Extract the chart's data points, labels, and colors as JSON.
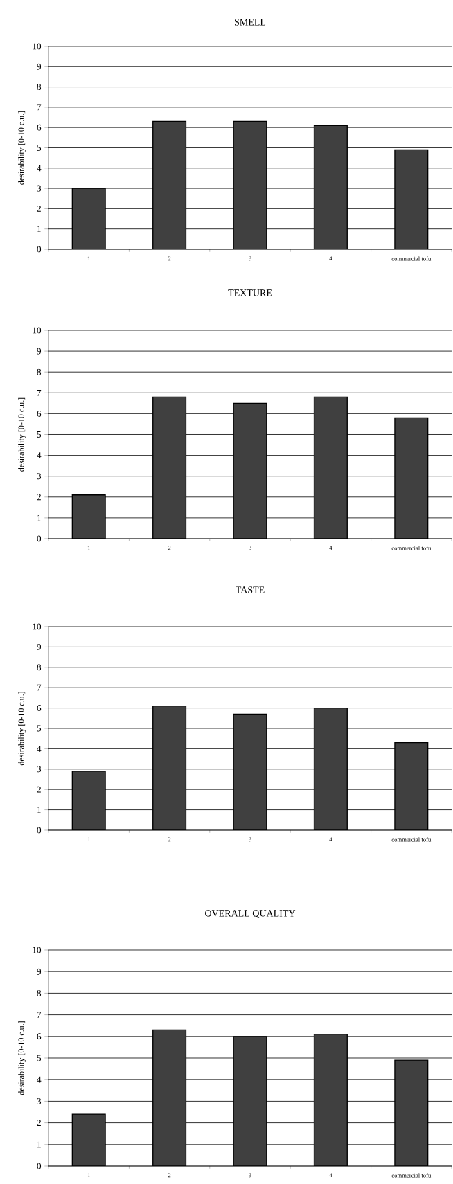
{
  "chart_data": [
    {
      "type": "bar",
      "title": "SMELL",
      "ylabel": "desirability [0-10 c.u.]",
      "categories": [
        "1",
        "2",
        "3",
        "4",
        "commercial tofu"
      ],
      "values": [
        3.0,
        6.3,
        6.3,
        6.1,
        4.9
      ],
      "color": "#404040",
      "ylim": [
        0,
        10
      ],
      "yticks": [
        0,
        1,
        2,
        3,
        4,
        5,
        6,
        7,
        8,
        9,
        10
      ],
      "grid": "y"
    },
    {
      "type": "bar",
      "title": "TEXTURE",
      "ylabel": "desirability [0-10 c.u.]",
      "categories": [
        "1",
        "2",
        "3",
        "4",
        "commercial tofu"
      ],
      "values": [
        2.1,
        6.8,
        6.5,
        6.8,
        5.8
      ],
      "color": "#404040",
      "ylim": [
        0,
        10
      ],
      "yticks": [
        0,
        1,
        2,
        3,
        4,
        5,
        6,
        7,
        8,
        9,
        10
      ],
      "grid": "y"
    },
    {
      "type": "bar",
      "title": "TASTE",
      "ylabel": "desirability [0-10 c.u.]",
      "categories": [
        "1",
        "2",
        "3",
        "4",
        "commercial tofu"
      ],
      "values": [
        2.9,
        6.1,
        5.7,
        6.0,
        4.3
      ],
      "color": "#404040",
      "ylim": [
        0,
        10
      ],
      "yticks": [
        0,
        1,
        2,
        3,
        4,
        5,
        6,
        7,
        8,
        9,
        10
      ],
      "grid": "y"
    },
    {
      "type": "bar",
      "title": "OVERALL QUALITY",
      "ylabel": "desirability [0-10 c.u.]",
      "categories": [
        "1",
        "2",
        "3",
        "4",
        "commercial tofu"
      ],
      "values": [
        2.4,
        6.3,
        6.0,
        6.1,
        4.9
      ],
      "color": "#404040",
      "ylim": [
        0,
        10
      ],
      "yticks": [
        0,
        1,
        2,
        3,
        4,
        5,
        6,
        7,
        8,
        9,
        10
      ],
      "grid": "y"
    }
  ]
}
